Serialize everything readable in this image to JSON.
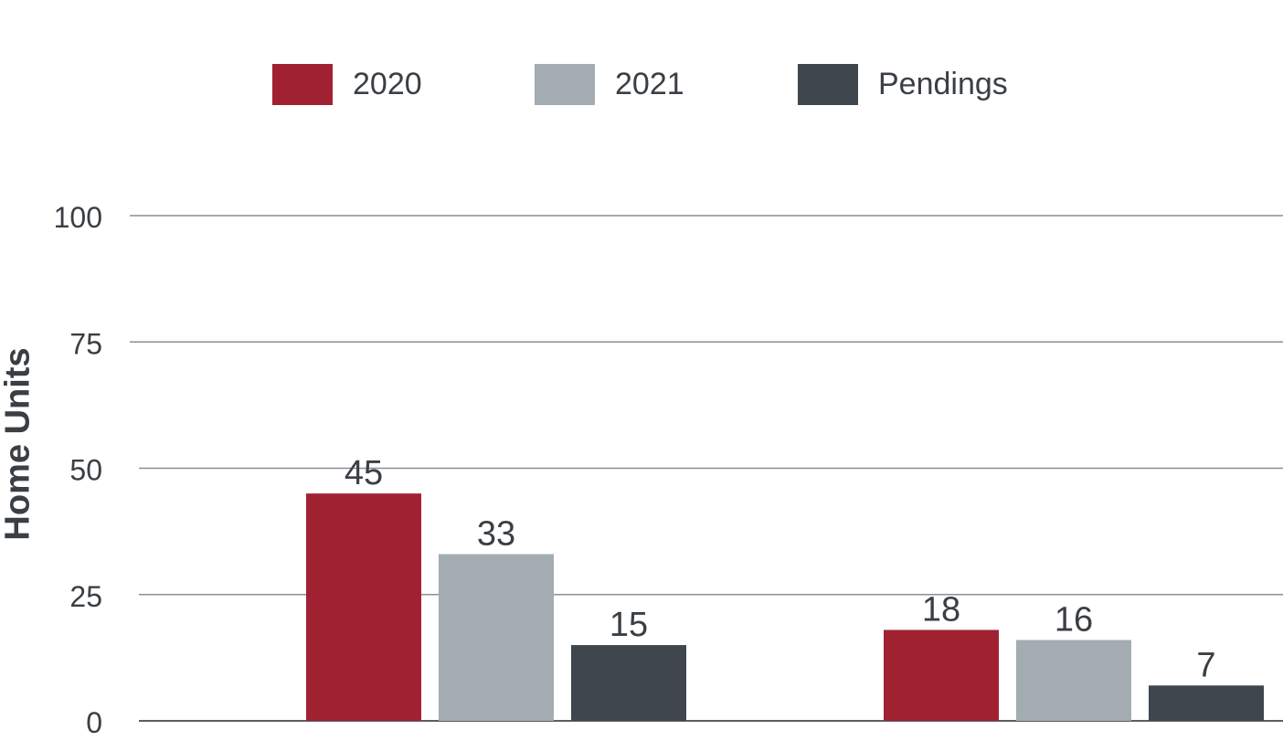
{
  "chart_data": {
    "type": "bar",
    "categories": [
      "",
      ""
    ],
    "series": [
      {
        "name": "2020",
        "values": [
          45,
          18
        ],
        "color": "#a02232"
      },
      {
        "name": "2021",
        "values": [
          33,
          16
        ],
        "color": "#a3acb1"
      },
      {
        "name": "Pendings",
        "values": [
          15,
          7
        ],
        "color": "#3f464d"
      }
    ],
    "data_labels": [
      [
        "45",
        "18"
      ],
      [
        "33",
        "16"
      ],
      [
        "15",
        "7"
      ]
    ],
    "title": "",
    "xlabel": "",
    "ylabel": "Home Units",
    "ylim": [
      0,
      100
    ],
    "yticks": [
      "0",
      "25",
      "50",
      "75",
      "100"
    ],
    "grid": true,
    "legend_position": "top"
  }
}
